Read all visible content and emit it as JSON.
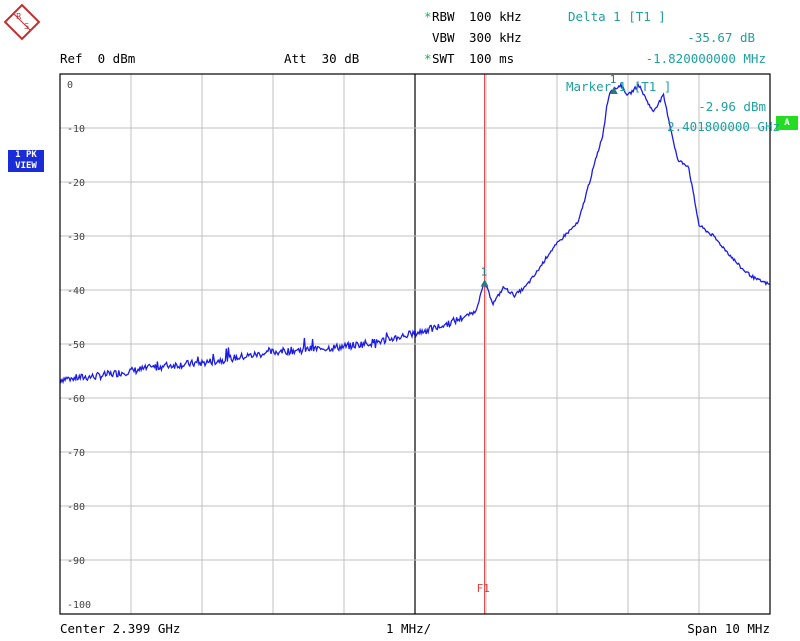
{
  "header": {
    "rbw_label": "RBW",
    "rbw_value": "100 kHz",
    "vbw_label": "VBW",
    "vbw_value": "300 kHz",
    "swt_label": "SWT",
    "swt_value": "100 ms",
    "ref_label": "Ref  0 dBm",
    "att_label": "Att  30 dB",
    "delta_title": "Delta 1 [T1 ]",
    "delta_level": "-35.67 dB",
    "delta_freq": "-1.820000000 MHz",
    "marker_title": "Marker 1 [T1 ]",
    "marker_level": "-2.96 dBm",
    "marker_freq": "2.401800000 GHz"
  },
  "side_tags": {
    "trace_line1": "1 PK",
    "trace_line2": "VIEW",
    "a_tag": "A"
  },
  "footer": {
    "center": "Center 2.399 GHz",
    "div": "1 MHz/",
    "span": "Span 10 MHz"
  },
  "colors": {
    "trace": "#1c1ce6",
    "grid": "#c0c0c0",
    "f1": "#e04040",
    "marker": "#2a7a7a",
    "tag_blue": "#1a2cd8",
    "tag_green": "#22dd22"
  },
  "chart_data": {
    "type": "line",
    "xlabel": "",
    "ylabel": "",
    "x_range": [
      2.394,
      2.404
    ],
    "ylim": [
      -100,
      0
    ],
    "yticks": [
      0,
      -10,
      -20,
      -30,
      -40,
      -50,
      -60,
      -70,
      -80,
      -90,
      -100
    ],
    "grid": true,
    "f1_label": "F1",
    "f1_x": 2.39998,
    "markers": [
      {
        "label": "1",
        "x": 2.39998,
        "y": -38.6
      },
      {
        "label": "1",
        "x": 2.4018,
        "y": -2.96
      }
    ],
    "series": [
      {
        "x": [
          2.394,
          2.3945,
          2.395,
          2.3955,
          2.396,
          2.3965,
          2.397,
          2.3975,
          2.398,
          2.3985,
          2.399,
          2.3993,
          2.3996,
          2.39985,
          2.39998,
          2.4001,
          2.40025,
          2.4004,
          2.40055,
          2.4007,
          2.4009,
          2.4011,
          2.4013,
          2.4015,
          2.40165,
          2.4017,
          2.40175,
          2.4018,
          2.4019,
          2.402,
          2.40215,
          2.40235,
          2.4025,
          2.4027,
          2.40285,
          2.403,
          2.4032,
          2.4034,
          2.4036,
          2.4038,
          2.404
        ],
        "y": [
          -56.5,
          -56,
          -55,
          -54,
          -53.5,
          -52.5,
          -51.5,
          -51,
          -50.5,
          -49.5,
          -48,
          -47,
          -45.5,
          -44,
          -38.6,
          -42.5,
          -39.5,
          -41,
          -39.5,
          -37,
          -33,
          -30,
          -27.5,
          -18,
          -11,
          -6,
          -3,
          -2.96,
          -2,
          -4,
          -2,
          -7,
          -4,
          -16,
          -17,
          -28,
          -30,
          -33,
          -36,
          -38,
          -39
        ]
      }
    ]
  }
}
